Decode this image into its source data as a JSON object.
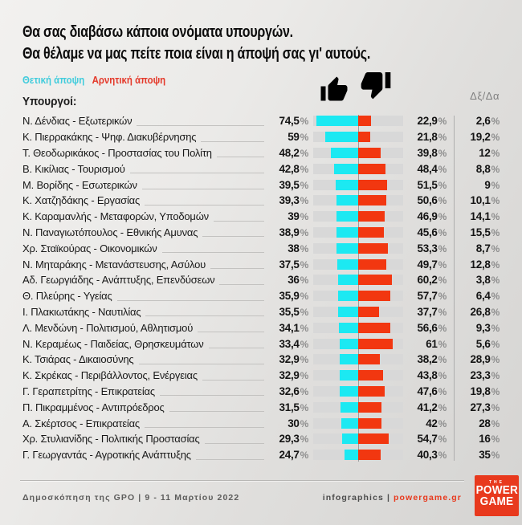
{
  "title": {
    "line1": "Θα σας διαβάσω κάποια ονόματα υπουργών.",
    "line2": "Θα θέλαμε να μας πείτε ποια είναι η άποψή σας γι' αυτούς."
  },
  "legend": {
    "positive_label": "Θετική άποψη",
    "negative_label": "Αρνητική άποψη"
  },
  "section_label": "Υπουργοί:",
  "dk_header": "Δξ/Δα",
  "colors": {
    "positive_bar": "#1CE9F2",
    "negative_bar": "#F23710",
    "track": "#D8D8D8",
    "legend_positive_text": "#41CCDC",
    "legend_negative_text": "#E4392A",
    "brand_red": "#E8391D"
  },
  "chart_data": {
    "type": "bar",
    "layout": "diverging-horizontal",
    "title": "Θα σας διαβάσω κάποια ονόματα υπουργών. Θα θέλαμε να μας πείτε ποια είναι η άποψή σας γι' αυτούς.",
    "legend_position": "top-left",
    "axis_max_per_side": 80,
    "grid": false,
    "categories": [
      "Ν. Δένδιας - Εξωτερικών",
      "Κ. Πιερρακάκης - Ψηφ. Διακυβέρνησης",
      "Τ. Θεοδωρικάκος - Προστασίας του Πολίτη",
      "Β. Κικίλιας - Τουρισμού",
      "Μ. Βορίδης - Εσωτερικών",
      "Κ. Χατζηδάκης - Εργασίας",
      "Κ. Καραμανλής - Μεταφορών, Υποδομών",
      "Ν. Παναγιωτόπουλος - Εθνικής Αμυνας",
      "Χρ. Σταϊκούρας - Οικονομικών",
      "Ν. Μηταράκης - Μετανάστευσης, Ασύλου",
      "Αδ. Γεωργιάδης - Ανάπτυξης, Επενδύσεων",
      "Θ. Πλεύρης - Υγείας",
      "Ι. Πλακιωτάκης - Ναυτιλίας",
      "Λ. Μενδώνη - Πολιτισμού, Αθλητισμού",
      "Ν. Κεραμέως - Παιδείας, Θρησκευμάτων",
      "Κ. Τσιάρας - Δικαιοσύνης",
      "Κ. Σκρέκας - Περιβάλλοντος, Ενέργειας",
      "Γ. Γεραπετρίτης - Επικρατείας",
      "Π. Πικραμμένος - Αντιπρόεδρος",
      "Α. Σκέρτσος - Επικρατείας",
      "Χρ. Στυλιανίδης - Πολιτικής Προστασίας",
      "Γ. Γεωργαντάς - Αγροτικής Ανάπτυξης"
    ],
    "series": [
      {
        "name": "Θετική άποψη",
        "color": "#1CE9F2",
        "values": [
          74.5,
          59,
          48.2,
          42.8,
          39.5,
          39.3,
          39,
          38.9,
          38,
          37.5,
          36,
          35.9,
          35.5,
          34.1,
          33.4,
          32.9,
          32.9,
          32.6,
          31.5,
          30,
          29.3,
          24.7
        ],
        "labels": [
          "74,5%",
          "59%",
          "48,2%",
          "42,8%",
          "39,5%",
          "39,3%",
          "39%",
          "38,9%",
          "38%",
          "37,5%",
          "36%",
          "35,9%",
          "35,5%",
          "34,1%",
          "33,4%",
          "32,9%",
          "32,9%",
          "32,6%",
          "31,5%",
          "30%",
          "29,3%",
          "24,7%"
        ]
      },
      {
        "name": "Αρνητική άποψη",
        "color": "#F23710",
        "values": [
          22.9,
          21.8,
          39.8,
          48.4,
          51.5,
          50.6,
          46.9,
          45.6,
          53.3,
          49.7,
          60.2,
          57.7,
          37.7,
          56.6,
          61,
          38.2,
          43.8,
          47.6,
          41.2,
          42,
          54.7,
          40.3
        ],
        "labels": [
          "22,9%",
          "21,8%",
          "39,8%",
          "48,4%",
          "51,5%",
          "50,6%",
          "46,9%",
          "45,6%",
          "53,3%",
          "49,7%",
          "60,2%",
          "57,7%",
          "37,7%",
          "56,6%",
          "61%",
          "38,2%",
          "43,8%",
          "47,6%",
          "41,2%",
          "42%",
          "54,7%",
          "40,3%"
        ]
      }
    ],
    "dk_column": {
      "label": "Δξ/Δα",
      "values": [
        2.6,
        19.2,
        12,
        8.8,
        9,
        10.1,
        14.1,
        15.5,
        8.7,
        12.8,
        3.8,
        6.4,
        26.8,
        9.3,
        5.6,
        28.9,
        23.3,
        19.8,
        27.3,
        28,
        16,
        35
      ],
      "labels": [
        "2,6%",
        "19,2%",
        "12%",
        "8,8%",
        "9%",
        "10,1%",
        "14,1%",
        "15,5%",
        "8,7%",
        "12,8%",
        "3,8%",
        "6,4%",
        "26,8%",
        "9,3%",
        "5,6%",
        "28,9%",
        "23,3%",
        "19,8%",
        "27,3%",
        "28%",
        "16%",
        "35%"
      ]
    }
  },
  "footer": {
    "source": "Δημοσκόπηση της GPO | 9 - 11 Μαρτίου 2022",
    "credit_prefix": "infographics | ",
    "credit_brand": "powergame.gr",
    "logo": {
      "top": "THE",
      "line1": "POWER",
      "line2": "GAME"
    }
  }
}
